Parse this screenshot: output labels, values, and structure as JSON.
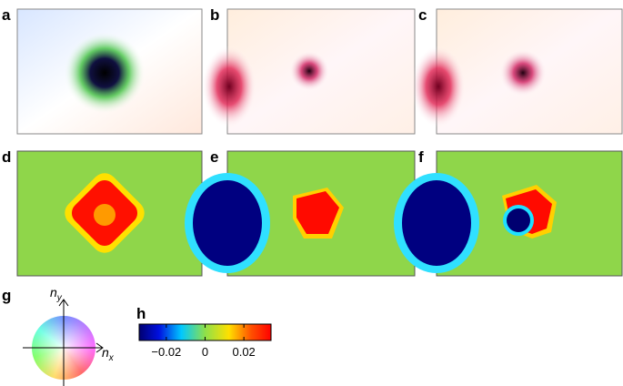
{
  "panels": [
    "a",
    "b",
    "c",
    "d",
    "e",
    "f"
  ],
  "color_wheel": {
    "label": "g",
    "y_axis": {
      "base": "n",
      "sub": "y"
    },
    "x_axis": {
      "base": "n",
      "sub": "x"
    }
  },
  "colorbar": {
    "label": "h",
    "clim": [
      -0.034,
      0.034
    ],
    "ticks": [
      {
        "value": -0.02,
        "label": "−0.02"
      },
      0,
      0.02
    ]
  }
}
